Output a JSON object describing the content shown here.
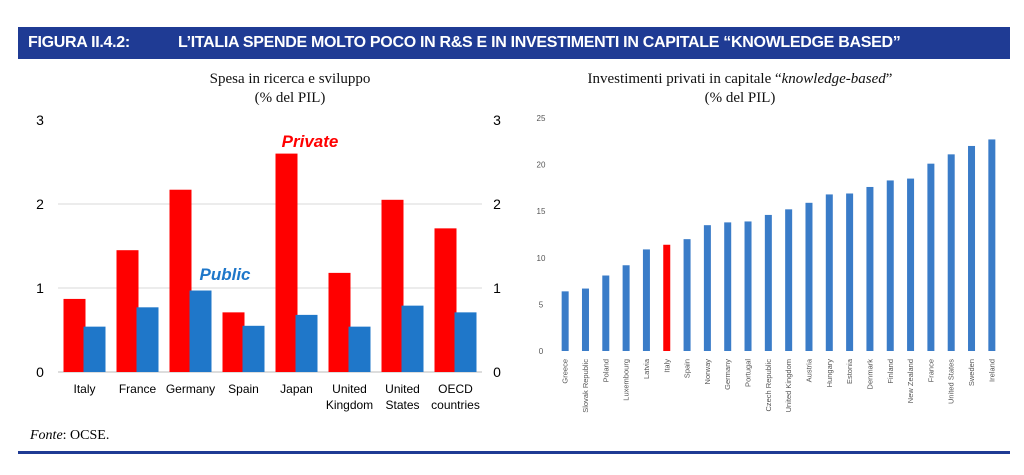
{
  "header": {
    "figure_number": "FIGURA II.4.2:",
    "title": "L’ITALIA SPENDE MOLTO POCO IN R&S E IN INVESTIMENTI IN CAPITALE “KNOWLEDGE BASED”"
  },
  "colors": {
    "header": "#1f3b94",
    "private": "#ff0000",
    "public": "#1f77c9",
    "bar": "#3a7cc8",
    "highlight": "#ff0000"
  },
  "chart_data": [
    {
      "type": "bar",
      "title": "Spesa in ricerca e sviluppo",
      "subtitle": "(% del PIL)",
      "categories": [
        "Italy",
        "France",
        "Germany",
        "Spain",
        "Japan",
        "United Kingdom",
        "United States",
        "OECD countries"
      ],
      "series": [
        {
          "name": "Private",
          "values": [
            0.87,
            1.45,
            2.17,
            0.71,
            2.6,
            1.18,
            2.05,
            1.71
          ]
        },
        {
          "name": "Public",
          "values": [
            0.54,
            0.77,
            0.97,
            0.55,
            0.68,
            0.54,
            0.79,
            0.71
          ]
        }
      ],
      "ylim": [
        0,
        3
      ],
      "yticks": [
        0,
        1,
        2,
        3
      ],
      "grid": true,
      "secondary_axis": true
    },
    {
      "type": "bar",
      "title_pre": "Investimenti privati in capitale “",
      "title_em": "knowledge-based",
      "title_post": "”",
      "subtitle": "(% del PIL)",
      "categories": [
        "Greece",
        "Slovak Republic",
        "Poland",
        "Luxembourg",
        "Latvia",
        "Italy",
        "Spain",
        "Norway",
        "Germany",
        "Portugal",
        "Czech Republic",
        "United Kingdom",
        "Austria",
        "Hungary",
        "Estonia",
        "Denmark",
        "Finland",
        "New Zealand",
        "France",
        "United States",
        "Sweden",
        "Ireland"
      ],
      "values": [
        6.4,
        6.7,
        8.1,
        9.2,
        10.9,
        11.4,
        12.0,
        13.5,
        13.8,
        13.9,
        14.6,
        15.2,
        15.9,
        16.8,
        16.9,
        17.6,
        18.3,
        18.5,
        20.1,
        21.1,
        22.0,
        22.7
      ],
      "highlight": "Italy",
      "ylim": [
        0,
        25
      ],
      "yticks": [
        0,
        5,
        10,
        15,
        20,
        25
      ],
      "grid": false
    }
  ],
  "source": {
    "label": "Fonte",
    "text": ": OCSE."
  }
}
